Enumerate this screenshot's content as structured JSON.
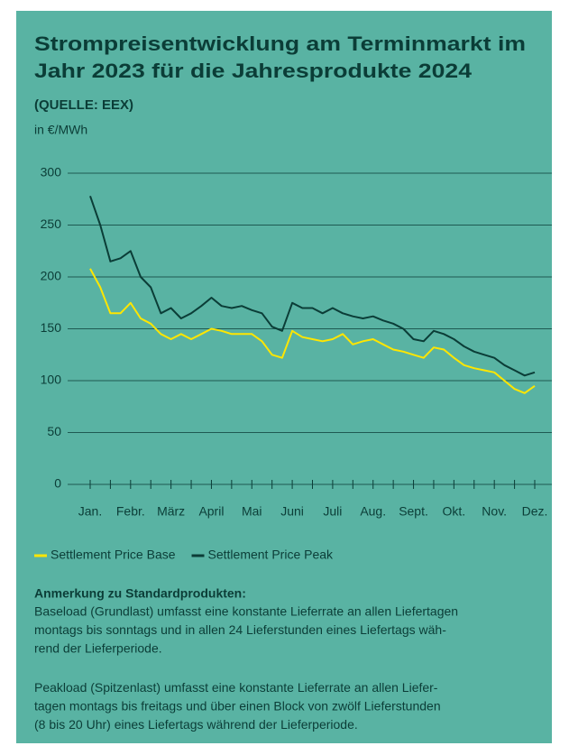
{
  "chart_data": {
    "type": "line",
    "title": [
      "Strompreisentwicklung am Terminmarkt im",
      "Jahr 2023 für die Jahresprodukte 2024"
    ],
    "subtitle": "(QUELLE: EEX)",
    "y_label": "in €/MWh",
    "categories": [
      "Jan.",
      null,
      null,
      null,
      "Febr.",
      null,
      null,
      null,
      "März",
      null,
      null,
      null,
      "April",
      null,
      null,
      null,
      "Mai",
      null,
      null,
      null,
      "Juni",
      null,
      null,
      null,
      "Juli",
      null,
      null,
      null,
      "Aug.",
      null,
      null,
      null,
      "Sept.",
      null,
      null,
      null,
      "Okt.",
      null,
      null,
      null,
      "Nov.",
      null,
      null,
      null,
      "Dez."
    ],
    "series": [
      {
        "name": "Settlement Price Base",
        "color": "#ffe600",
        "values": [
          208,
          190,
          165,
          165,
          175,
          160,
          155,
          145,
          140,
          145,
          140,
          145,
          150,
          148,
          145,
          145,
          145,
          138,
          125,
          122,
          148,
          142,
          140,
          138,
          140,
          145,
          135,
          138,
          140,
          135,
          130,
          128,
          125,
          122,
          132,
          130,
          122,
          115,
          112,
          110,
          108,
          100,
          92,
          88,
          95
        ]
      },
      {
        "name": "Settlement Price Peak",
        "color": "#0b3d37",
        "values": [
          278,
          250,
          215,
          218,
          225,
          200,
          190,
          165,
          170,
          160,
          165,
          172,
          180,
          172,
          170,
          172,
          168,
          165,
          152,
          148,
          175,
          170,
          170,
          165,
          170,
          165,
          162,
          160,
          162,
          158,
          155,
          150,
          140,
          138,
          148,
          145,
          140,
          133,
          128,
          125,
          122,
          115,
          110,
          105,
          108
        ]
      }
    ],
    "ylim": [
      0,
      300
    ],
    "yticks": [
      0,
      50,
      100,
      150,
      200,
      250,
      300
    ],
    "grid": true,
    "legend": "bottom"
  },
  "notes": {
    "heading": "Anmerkung zu Standardprodukten:",
    "paragraphs": [
      [
        "Baseload (Grundlast) umfasst eine konstante Lieferrate an allen Liefertagen",
        "montags bis sonntags und in allen 24 Lieferstunden eines Liefertags wäh-",
        "rend der Lieferperiode."
      ],
      [
        "Peakload (Spitzenlast) umfasst eine konstante Lieferrate an allen Liefer-",
        "tagen montags bis freitags und über einen Block von zwölf Lieferstunden",
        "(8 bis 20 Uhr) eines Liefertags während der Lieferperiode."
      ]
    ]
  }
}
